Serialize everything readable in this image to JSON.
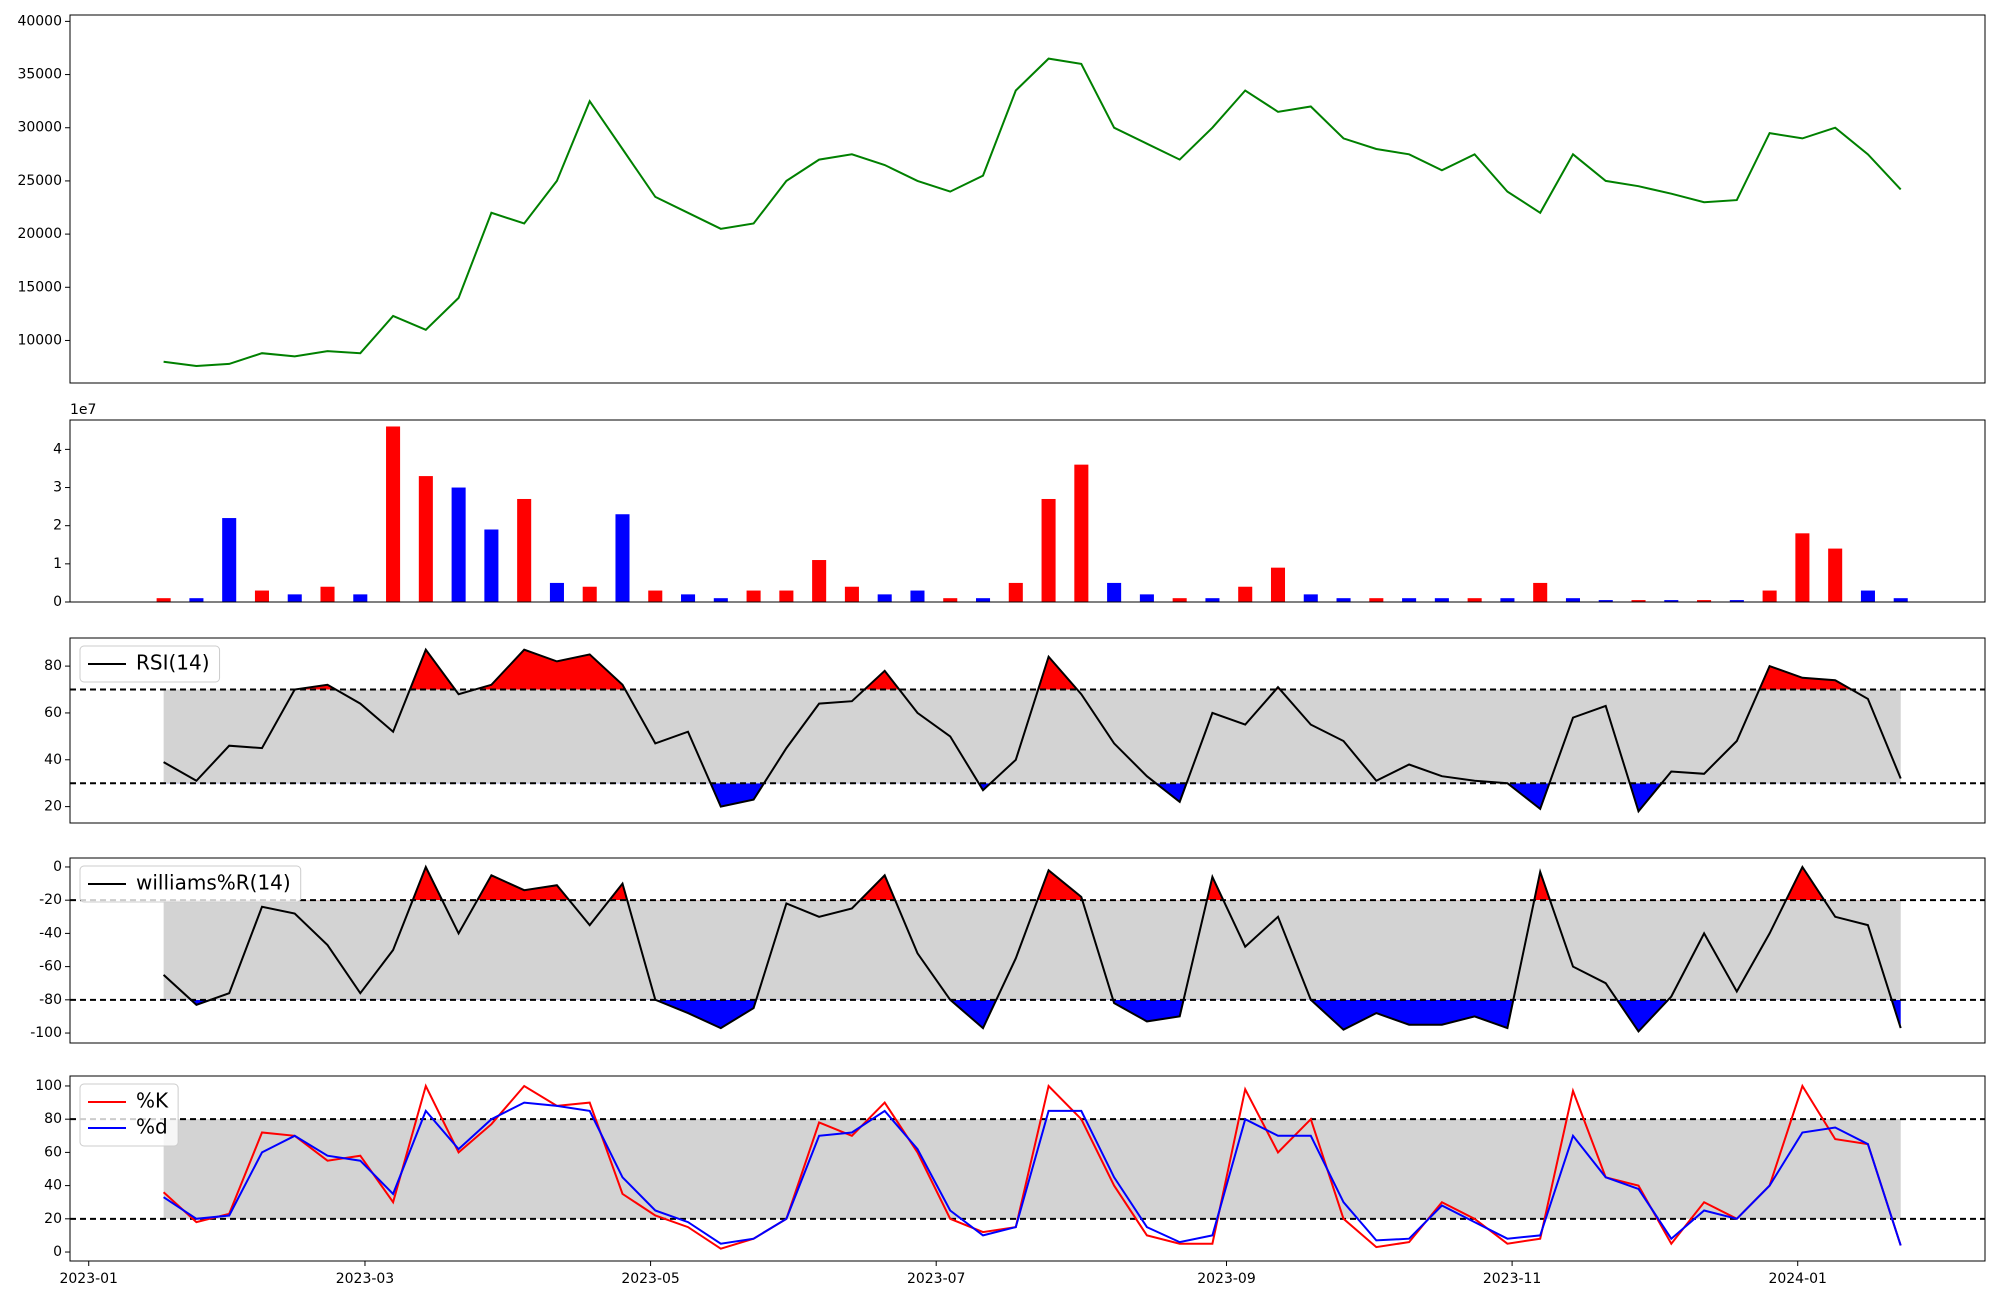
{
  "chart_data": [
    {
      "type": "line",
      "x": [
        "2023-01-17",
        "2023-01-24",
        "2023-01-31",
        "2023-02-07",
        "2023-02-14",
        "2023-02-21",
        "2023-02-28",
        "2023-03-07",
        "2023-03-14",
        "2023-03-21",
        "2023-03-28",
        "2023-04-04",
        "2023-04-11",
        "2023-04-18",
        "2023-04-25",
        "2023-05-02",
        "2023-05-09",
        "2023-05-16",
        "2023-05-23",
        "2023-05-30",
        "2023-06-06",
        "2023-06-13",
        "2023-06-20",
        "2023-06-27",
        "2023-07-04",
        "2023-07-11",
        "2023-07-18",
        "2023-07-25",
        "2023-08-01",
        "2023-08-08",
        "2023-08-15",
        "2023-08-22",
        "2023-08-29",
        "2023-09-05",
        "2023-09-12",
        "2023-09-19",
        "2023-09-26",
        "2023-10-03",
        "2023-10-10",
        "2023-10-17",
        "2023-10-24",
        "2023-10-31",
        "2023-11-07",
        "2023-11-14",
        "2023-11-21",
        "2023-11-28",
        "2023-12-05",
        "2023-12-12",
        "2023-12-19",
        "2023-12-26",
        "2024-01-02",
        "2024-01-09",
        "2024-01-16",
        "2024-01-23"
      ],
      "xlim": [
        "2022-12-28",
        "2024-02-10"
      ],
      "series": [
        {
          "color": "green",
          "values": [
            8000,
            7600,
            7800,
            8800,
            8500,
            9000,
            8800,
            12300,
            11000,
            14000,
            22000,
            21000,
            25000,
            32500,
            28000,
            23500,
            22000,
            20500,
            21000,
            25000,
            27000,
            27500,
            26500,
            25000,
            24000,
            25500,
            33500,
            36500,
            36000,
            30000,
            28500,
            27000,
            30000,
            33500,
            31500,
            32000,
            29000,
            28000,
            27500,
            26000,
            27500,
            24000,
            22000,
            27500,
            25000,
            24500,
            23800,
            23000,
            23200,
            29500,
            29000,
            30000,
            27500,
            24200
          ]
        }
      ],
      "ylim": [
        6000,
        40600
      ],
      "yticks": [
        10000,
        15000,
        20000,
        25000,
        30000,
        35000,
        40000
      ]
    },
    {
      "type": "bar",
      "x": [
        "2023-01-17",
        "2023-01-24",
        "2023-01-31",
        "2023-02-07",
        "2023-02-14",
        "2023-02-21",
        "2023-02-28",
        "2023-03-07",
        "2023-03-14",
        "2023-03-21",
        "2023-03-28",
        "2023-04-04",
        "2023-04-11",
        "2023-04-18",
        "2023-04-25",
        "2023-05-02",
        "2023-05-09",
        "2023-05-16",
        "2023-05-23",
        "2023-05-30",
        "2023-06-06",
        "2023-06-13",
        "2023-06-20",
        "2023-06-27",
        "2023-07-04",
        "2023-07-11",
        "2023-07-18",
        "2023-07-25",
        "2023-08-01",
        "2023-08-08",
        "2023-08-15",
        "2023-08-22",
        "2023-08-29",
        "2023-09-05",
        "2023-09-12",
        "2023-09-19",
        "2023-09-26",
        "2023-10-03",
        "2023-10-10",
        "2023-10-17",
        "2023-10-24",
        "2023-10-31",
        "2023-11-07",
        "2023-11-14",
        "2023-11-21",
        "2023-11-28",
        "2023-12-05",
        "2023-12-12",
        "2023-12-19",
        "2023-12-26",
        "2024-01-02",
        "2024-01-09",
        "2024-01-16",
        "2024-01-23"
      ],
      "xlim": [
        "2022-12-28",
        "2024-02-10"
      ],
      "values": [
        0.1,
        0.1,
        2.2,
        0.3,
        0.2,
        0.4,
        0.2,
        4.6,
        3.3,
        3.0,
        1.9,
        2.7,
        0.5,
        0.4,
        2.3,
        0.3,
        0.2,
        0.1,
        0.3,
        0.3,
        1.1,
        0.4,
        0.2,
        0.3,
        0.1,
        0.1,
        0.5,
        2.7,
        3.6,
        0.5,
        0.2,
        0.1,
        0.1,
        0.4,
        0.9,
        0.2,
        0.1,
        0.1,
        0.1,
        0.1,
        0.1,
        0.1,
        0.5,
        0.1,
        0.05,
        0.05,
        0.05,
        0.05,
        0.05,
        0.3,
        1.8,
        1.4,
        0.3,
        0.1
      ],
      "bar_colors": [
        "red",
        "blue",
        "blue",
        "red",
        "blue",
        "red",
        "blue",
        "red",
        "red",
        "blue",
        "blue",
        "red",
        "blue",
        "red",
        "blue",
        "red",
        "blue",
        "blue",
        "red",
        "red",
        "red",
        "red",
        "blue",
        "blue",
        "red",
        "blue",
        "red",
        "red",
        "red",
        "blue",
        "blue",
        "red",
        "blue",
        "red",
        "red",
        "blue",
        "blue",
        "red",
        "blue",
        "blue",
        "red",
        "blue",
        "red",
        "blue",
        "blue",
        "red",
        "blue",
        "red",
        "blue",
        "red",
        "red",
        "red",
        "blue",
        "blue"
      ],
      "offset_label": "1e7",
      "ylim": [
        0,
        4.77
      ],
      "yticks": [
        0,
        1,
        2,
        3,
        4
      ]
    },
    {
      "type": "oscillator",
      "x": [
        "2023-01-17",
        "2023-01-24",
        "2023-01-31",
        "2023-02-07",
        "2023-02-14",
        "2023-02-21",
        "2023-02-28",
        "2023-03-07",
        "2023-03-14",
        "2023-03-21",
        "2023-03-28",
        "2023-04-04",
        "2023-04-11",
        "2023-04-18",
        "2023-04-25",
        "2023-05-02",
        "2023-05-09",
        "2023-05-16",
        "2023-05-23",
        "2023-05-30",
        "2023-06-06",
        "2023-06-13",
        "2023-06-20",
        "2023-06-27",
        "2023-07-04",
        "2023-07-11",
        "2023-07-18",
        "2023-07-25",
        "2023-08-01",
        "2023-08-08",
        "2023-08-15",
        "2023-08-22",
        "2023-08-29",
        "2023-09-05",
        "2023-09-12",
        "2023-09-19",
        "2023-09-26",
        "2023-10-03",
        "2023-10-10",
        "2023-10-17",
        "2023-10-24",
        "2023-10-31",
        "2023-11-07",
        "2023-11-14",
        "2023-11-21",
        "2023-11-28",
        "2023-12-05",
        "2023-12-12",
        "2023-12-19",
        "2023-12-26",
        "2024-01-02",
        "2024-01-09",
        "2024-01-16",
        "2024-01-23"
      ],
      "xlim": [
        "2022-12-28",
        "2024-02-10"
      ],
      "series": [
        {
          "name": "RSI(14)",
          "color": "black",
          "values": [
            39,
            31,
            46,
            45,
            70,
            72,
            64,
            52,
            87,
            68,
            72,
            87,
            82,
            85,
            72,
            47,
            52,
            20,
            23,
            45,
            64,
            65,
            78,
            60,
            50,
            27,
            40,
            84,
            68,
            47,
            33,
            22,
            60,
            55,
            71,
            55,
            48,
            31,
            38,
            33,
            31,
            30,
            19,
            58,
            63,
            18,
            35,
            34,
            48,
            80,
            75,
            74,
            66,
            32
          ]
        }
      ],
      "upper": 70,
      "lower": 30,
      "band_color": "lightgray",
      "over_color": "red",
      "under_color": "blue",
      "ylim": [
        13,
        92
      ],
      "yticks": [
        20,
        40,
        60,
        80
      ],
      "legend": "upper left"
    },
    {
      "type": "oscillator",
      "x": [
        "2023-01-17",
        "2023-01-24",
        "2023-01-31",
        "2023-02-07",
        "2023-02-14",
        "2023-02-21",
        "2023-02-28",
        "2023-03-07",
        "2023-03-14",
        "2023-03-21",
        "2023-03-28",
        "2023-04-04",
        "2023-04-11",
        "2023-04-18",
        "2023-04-25",
        "2023-05-02",
        "2023-05-09",
        "2023-05-16",
        "2023-05-23",
        "2023-05-30",
        "2023-06-06",
        "2023-06-13",
        "2023-06-20",
        "2023-06-27",
        "2023-07-04",
        "2023-07-11",
        "2023-07-18",
        "2023-07-25",
        "2023-08-01",
        "2023-08-08",
        "2023-08-15",
        "2023-08-22",
        "2023-08-29",
        "2023-09-05",
        "2023-09-12",
        "2023-09-19",
        "2023-09-26",
        "2023-10-03",
        "2023-10-10",
        "2023-10-17",
        "2023-10-24",
        "2023-10-31",
        "2023-11-07",
        "2023-11-14",
        "2023-11-21",
        "2023-11-28",
        "2023-12-05",
        "2023-12-12",
        "2023-12-19",
        "2023-12-26",
        "2024-01-02",
        "2024-01-09",
        "2024-01-16",
        "2024-01-23"
      ],
      "xlim": [
        "2022-12-28",
        "2024-02-10"
      ],
      "series": [
        {
          "name": "williams%R(14)",
          "color": "black",
          "values": [
            -65,
            -83,
            -76,
            -24,
            -28,
            -47,
            -76,
            -50,
            0,
            -40,
            -5,
            -14,
            -11,
            -35,
            -10,
            -80,
            -88,
            -97,
            -85,
            -22,
            -30,
            -25,
            -5,
            -52,
            -80,
            -97,
            -55,
            -2,
            -18,
            -82,
            -93,
            -90,
            -6,
            -48,
            -30,
            -80,
            -98,
            -88,
            -95,
            -95,
            -90,
            -97,
            -3,
            -60,
            -70,
            -99,
            -78,
            -40,
            -75,
            -40,
            0,
            -30,
            -35,
            -97
          ]
        }
      ],
      "upper": -20,
      "lower": -80,
      "band_color": "lightgray",
      "over_color": "red",
      "under_color": "blue",
      "ylim": [
        -106,
        5.4
      ],
      "yticks": [
        -100,
        -80,
        -60,
        -40,
        -20,
        0
      ],
      "legend": "upper left"
    },
    {
      "type": "oscillator",
      "x": [
        "2023-01-17",
        "2023-01-24",
        "2023-01-31",
        "2023-02-07",
        "2023-02-14",
        "2023-02-21",
        "2023-02-28",
        "2023-03-07",
        "2023-03-14",
        "2023-03-21",
        "2023-03-28",
        "2023-04-04",
        "2023-04-11",
        "2023-04-18",
        "2023-04-25",
        "2023-05-02",
        "2023-05-09",
        "2023-05-16",
        "2023-05-23",
        "2023-05-30",
        "2023-06-06",
        "2023-06-13",
        "2023-06-20",
        "2023-06-27",
        "2023-07-04",
        "2023-07-11",
        "2023-07-18",
        "2023-07-25",
        "2023-08-01",
        "2023-08-08",
        "2023-08-15",
        "2023-08-22",
        "2023-08-29",
        "2023-09-05",
        "2023-09-12",
        "2023-09-19",
        "2023-09-26",
        "2023-10-03",
        "2023-10-10",
        "2023-10-17",
        "2023-10-24",
        "2023-10-31",
        "2023-11-07",
        "2023-11-14",
        "2023-11-21",
        "2023-11-28",
        "2023-12-05",
        "2023-12-12",
        "2023-12-19",
        "2023-12-26",
        "2024-01-02",
        "2024-01-09",
        "2024-01-16",
        "2024-01-23"
      ],
      "xlim": [
        "2022-12-28",
        "2024-02-10"
      ],
      "xticks": [
        {
          "value": "2023-01-01",
          "label": "2023-01"
        },
        {
          "value": "2023-03-01",
          "label": "2023-03"
        },
        {
          "value": "2023-05-01",
          "label": "2023-05"
        },
        {
          "value": "2023-07-01",
          "label": "2023-07"
        },
        {
          "value": "2023-09-01",
          "label": "2023-09"
        },
        {
          "value": "2023-11-01",
          "label": "2023-11"
        },
        {
          "value": "2024-01-01",
          "label": "2024-01"
        }
      ],
      "series": [
        {
          "name": "%K",
          "color": "red",
          "values": [
            36,
            18,
            23,
            72,
            70,
            55,
            58,
            30,
            100,
            60,
            77,
            100,
            88,
            90,
            35,
            22,
            15,
            2,
            8,
            20,
            78,
            70,
            90,
            60,
            20,
            12,
            15,
            100,
            80,
            40,
            10,
            5,
            5,
            98,
            60,
            80,
            20,
            3,
            6,
            30,
            20,
            5,
            8,
            97,
            45,
            40,
            5,
            30,
            20,
            40,
            100,
            68,
            65,
            4
          ]
        },
        {
          "name": "%d",
          "color": "blue",
          "values": [
            33,
            20,
            22,
            60,
            70,
            58,
            55,
            35,
            85,
            62,
            80,
            90,
            88,
            85,
            45,
            25,
            18,
            5,
            8,
            20,
            70,
            72,
            85,
            62,
            25,
            10,
            15,
            85,
            85,
            45,
            15,
            6,
            10,
            80,
            70,
            70,
            30,
            7,
            8,
            28,
            18,
            8,
            10,
            70,
            45,
            38,
            8,
            25,
            20,
            40,
            72,
            75,
            65,
            4
          ]
        }
      ],
      "upper": 80,
      "lower": 20,
      "band_color": "lightgray",
      "ylim": [
        -5.4,
        106
      ],
      "yticks": [
        0,
        20,
        40,
        60,
        80,
        100
      ],
      "legend": "upper left"
    }
  ]
}
